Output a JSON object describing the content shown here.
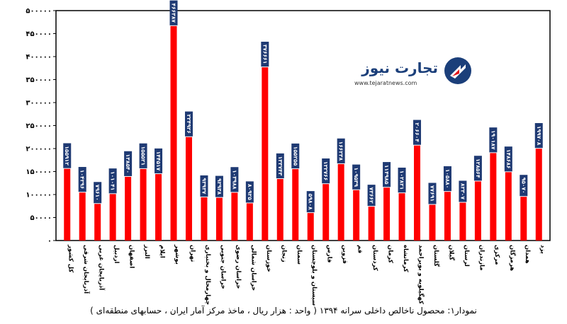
{
  "chart_data": {
    "type": "bar",
    "title": "نمودار۱: محصول ناخالص داخلی سرانه ۱۳۹۴ ( واحد : هزار ریال ، ماخذ مرکز آمار ایران ، حسابهای منطقه‌ای )",
    "ylim": [
      0,
      500000
    ],
    "yticks": [
      0,
      50000,
      100000,
      150000,
      200000,
      250000,
      300000,
      350000,
      400000,
      450000,
      500000
    ],
    "ytick_labels": [
      "۰",
      "۵۰۰۰۰",
      "۱۰۰۰۰۰",
      "۱۵۰۰۰۰",
      "۲۰۰۰۰۰",
      "۲۵۰۰۰۰",
      "۳۰۰۰۰۰",
      "۳۵۰۰۰۰",
      "۴۰۰۰۰۰",
      "۴۵۰۰۰۰",
      "۵۰۰۰۰۰"
    ],
    "grid": false,
    "bar_color": "#ff0000",
    "label_bg_color": "#1f3a73",
    "categories": [
      "کل کشور",
      "آذربایجان شرقی",
      "آذربایجان غربی",
      "اردبیل",
      "اصفهان",
      "البرز",
      "ایلام",
      "بوشهر",
      "تهران",
      "چهارمحال و بختیاری",
      "خراسان جنوبی",
      "خراسان رضوی",
      "خراسان شمالی",
      "خوزستان",
      "زنجان",
      "سمنان",
      "سیستان و بلوچستان",
      "فارس",
      "قزوین",
      "قم",
      "کردستان",
      "کرمان",
      "کرمانشاه",
      "کهگیلویه و بویراحمد",
      "گلستان",
      "گیلان",
      "لرستان",
      "مازندران",
      "مرکزی",
      "هرمزگان",
      "همدان",
      "یزد"
    ],
    "values": [
      155912,
      104296,
      79610,
      101041,
      138540,
      155521,
      144517,
      466387,
      224926,
      93937,
      92938,
      103988,
      80925,
      376661,
      133743,
      155255,
      59808,
      122766,
      166238,
      109539,
      73662,
      114985,
      102821,
      206604,
      77691,
      105880,
      82307,
      128564,
      190187,
      148686,
      95070,
      199708
    ],
    "value_labels": [
      "۱۵۵۹۱۲",
      "۱۰۴۲۹۶",
      "۷۹۶۱۰",
      "۱۰۱۰۴۱",
      "۱۳۸۵۴۰",
      "۱۵۵۵۲۱",
      "۱۴۴۵۱۷",
      "۴۶۶۳۸۷",
      "۲۲۴۹۲۶",
      "۹۳۹۳۷",
      "۹۲۹۳۸",
      "۱۰۳۹۸۸",
      "۸۰۹۲۵",
      "۳۷۶۶۶۱",
      "۱۳۳۷۴۳",
      "۱۵۵۲۵۵",
      "۵۹۸۰۸",
      "۱۲۲۷۶۶",
      "۱۶۶۲۳۸",
      "۱۰۹۵۳۹",
      "۷۳۶۶۲",
      "۱۱۴۹۸۵",
      "۱۰۲۸۲۱",
      "۲۰۶۶۰۴",
      "۷۷۶۹۱",
      "۱۰۵۸۸۰",
      "۸۲۳۰۷",
      "۱۲۸۵۶۴",
      "۱۹۰۱۸۷",
      "۱۴۸۶۸۶",
      "۹۵۰۷۰",
      "۱۹۹۷۰۸"
    ]
  },
  "logo": {
    "brand": "تجارت نیوز",
    "url": "www.tejaratnews.com",
    "colors": {
      "navy": "#1b3f7a",
      "red": "#e3151a"
    }
  }
}
